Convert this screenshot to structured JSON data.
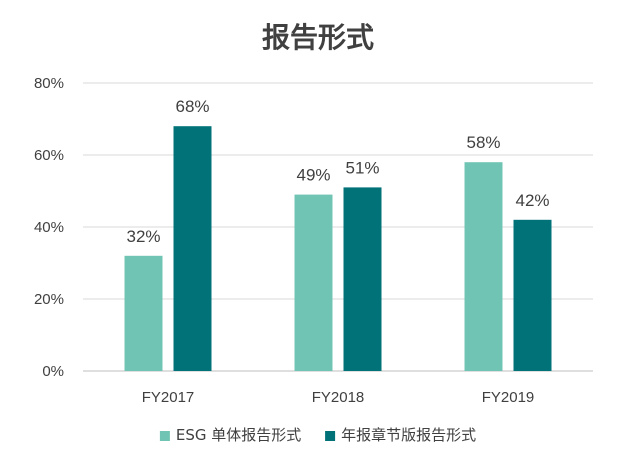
{
  "chart_data": {
    "type": "bar",
    "title": "报告形式",
    "categories": [
      "FY2017",
      "FY2018",
      "FY2019"
    ],
    "series": [
      {
        "name": "ESG 单体报告形式",
        "color": "#70c4b4",
        "values": [
          32,
          49,
          58
        ]
      },
      {
        "name": "年报章节版报告形式",
        "color": "#007278",
        "values": [
          68,
          51,
          42
        ]
      }
    ],
    "value_labels": [
      [
        "32%",
        "49%",
        "58%"
      ],
      [
        "68%",
        "51%",
        "42%"
      ]
    ],
    "yticks": [
      "0%",
      "20%",
      "40%",
      "60%",
      "80%"
    ],
    "ytick_values": [
      0,
      20,
      40,
      60,
      80
    ],
    "ylim": [
      0,
      80
    ],
    "grid": true,
    "legend_position": "bottom"
  }
}
